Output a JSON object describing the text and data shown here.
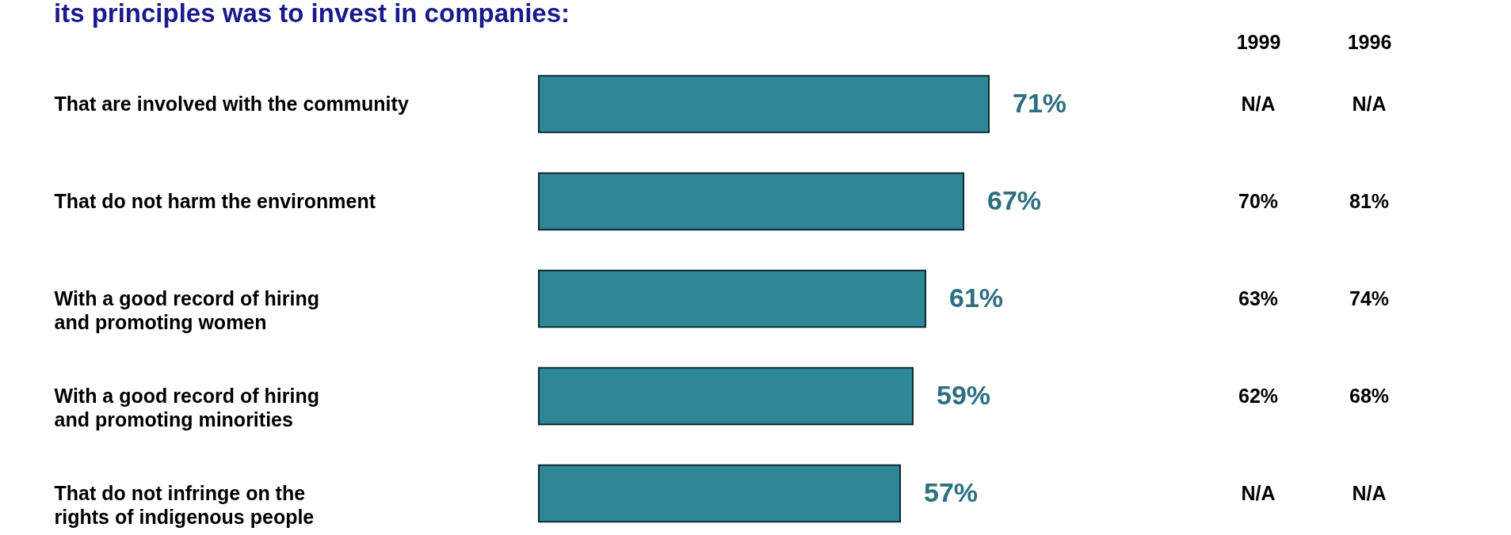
{
  "chart_data": {
    "type": "bar",
    "orientation": "horizontal",
    "title": "its principles was to invest in companies:",
    "categories": [
      "That are involved with the community",
      "That do not harm the environment",
      "With a good record of hiring and promoting women",
      "With a good record of hiring and promoting minorities",
      "That do not infringe on the rights of indigenous people"
    ],
    "values": [
      71,
      67,
      61,
      59,
      57
    ],
    "color": "#2e8797",
    "value_labels": [
      "71%",
      "67%",
      "61%",
      "59%",
      "57%"
    ],
    "annotations": [
      "1999",
      "1996",
      "N/A",
      "N/A",
      "70%",
      "81%",
      "63%",
      "74%",
      "62%",
      "68%",
      "N/A",
      "N/A"
    ]
  }
}
